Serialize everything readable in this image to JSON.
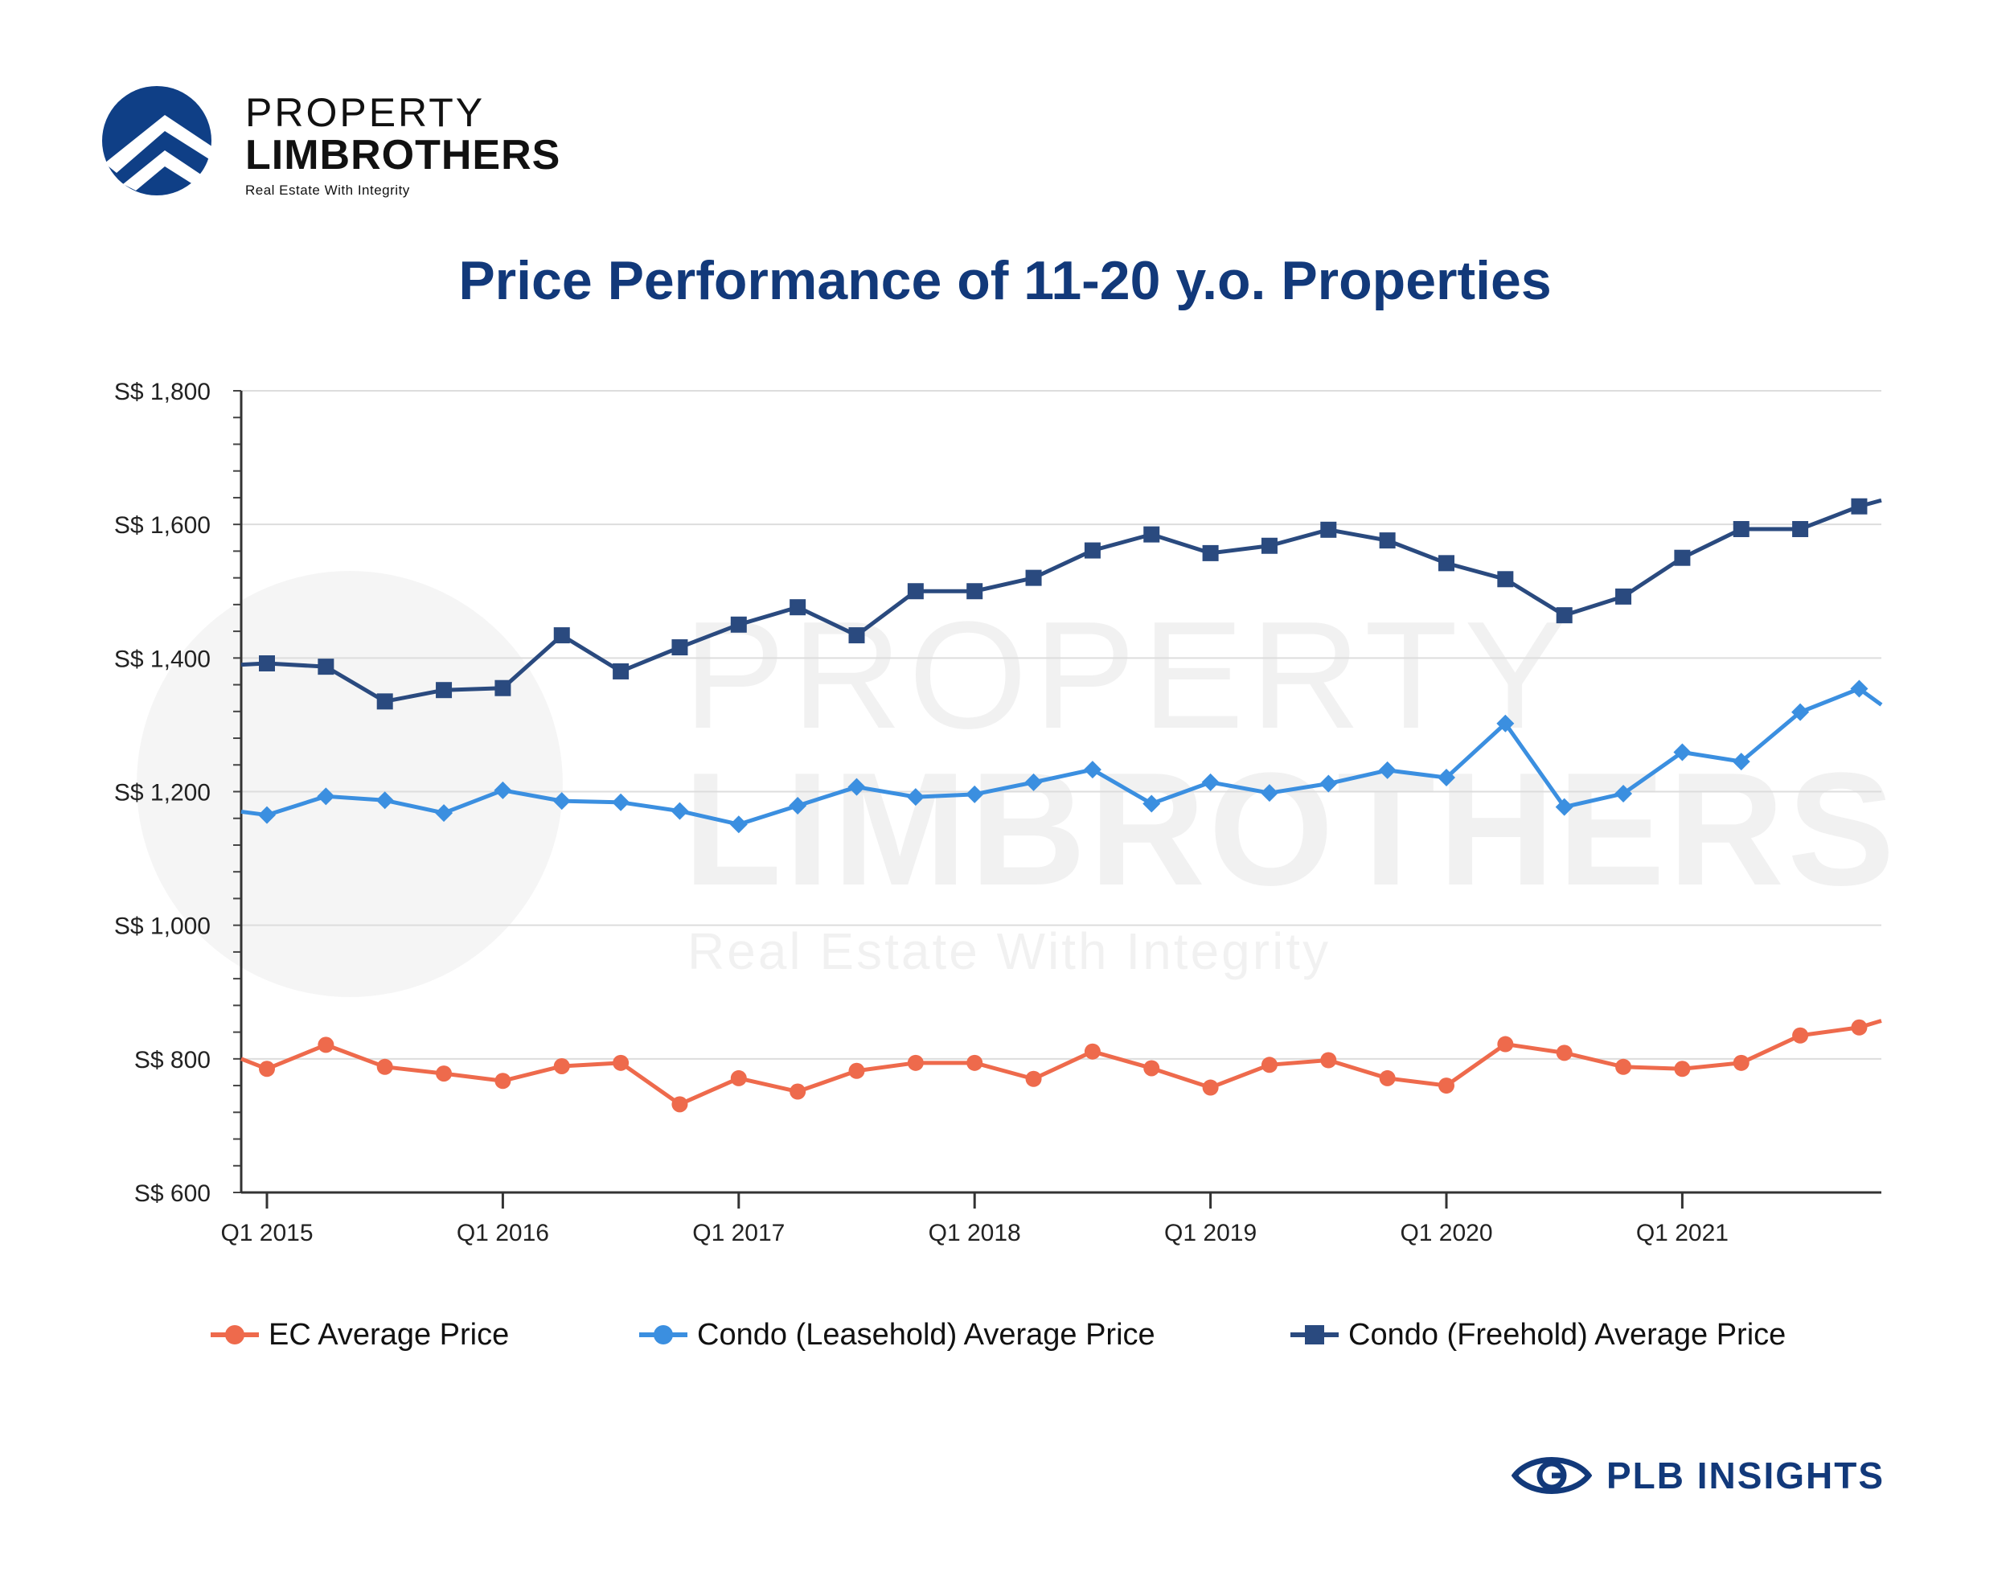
{
  "brand": {
    "line1": "PROPERTY",
    "line2": "LIMBROTHERS",
    "tagline": "Real Estate With Integrity",
    "logo_color": "#0f3f86"
  },
  "watermark": {
    "line1": "PROPERTY",
    "line2": "LIMBROTHERS",
    "line3": "Real Estate With Integrity"
  },
  "footer": {
    "text": "PLB INSIGHTS",
    "icon": "eye-g-icon"
  },
  "chart_data": {
    "type": "line",
    "title": "Price Performance of 11-20 y.o. Properties",
    "xlabel": "",
    "ylabel": "",
    "ylim": [
      600,
      1800
    ],
    "yticks": [
      {
        "value": 1800,
        "label": "S$ 1,800"
      },
      {
        "value": 1600,
        "label": "S$ 1,600"
      },
      {
        "value": 1400,
        "label": "S$ 1,400"
      },
      {
        "value": 1200,
        "label": "S$ 1,200"
      },
      {
        "value": 1000,
        "label": "S$ 1,000"
      },
      {
        "value": 800,
        "label": "S$ 800"
      },
      {
        "value": 600,
        "label": "S$ 600"
      }
    ],
    "xtick_labels": [
      "Q1 2015",
      "Q1 2016",
      "Q1 2017",
      "Q1 2018",
      "Q1 2019",
      "Q1 2020",
      "Q1 2021"
    ],
    "grid": true,
    "legend_position": "bottom",
    "series": [
      {
        "name": "EC Average Price",
        "color": "#ee6a4c",
        "marker": "circle",
        "start": 800,
        "end": 857,
        "values": [
          785,
          821,
          788,
          778,
          767,
          789,
          794,
          732,
          771,
          751,
          782,
          794,
          794,
          770,
          811,
          786,
          757,
          791,
          798,
          771,
          760,
          822,
          809,
          788,
          785,
          794,
          835,
          847
        ]
      },
      {
        "name": "Condo (Leasehold) Average Price",
        "color": "#3b8fe0",
        "marker": "diamond",
        "start": 1170,
        "end": 1330,
        "values": [
          1165,
          1193,
          1187,
          1168,
          1202,
          1186,
          1184,
          1171,
          1151,
          1179,
          1207,
          1192,
          1196,
          1214,
          1233,
          1182,
          1214,
          1198,
          1212,
          1232,
          1221,
          1302,
          1177,
          1197,
          1259,
          1245,
          1319,
          1354
        ]
      },
      {
        "name": "Condo (Freehold) Average Price",
        "color": "#2a4a7f",
        "marker": "square",
        "start": 1390,
        "end": 1636,
        "values": [
          1392,
          1387,
          1335,
          1352,
          1355,
          1434,
          1380,
          1416,
          1450,
          1476,
          1434,
          1500,
          1500,
          1520,
          1561,
          1585,
          1557,
          1568,
          1592,
          1576,
          1542,
          1518,
          1464,
          1492,
          1550,
          1593,
          1593,
          1627
        ]
      }
    ]
  }
}
